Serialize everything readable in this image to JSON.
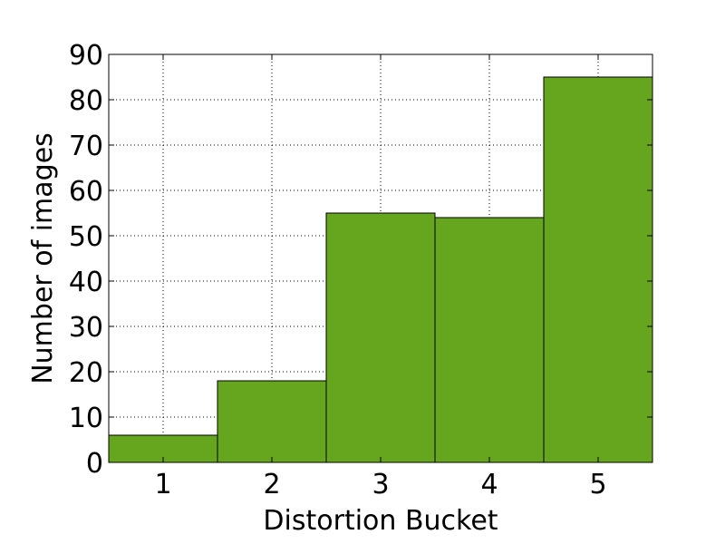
{
  "chart_data": {
    "type": "bar",
    "categories": [
      "1",
      "2",
      "3",
      "4",
      "5"
    ],
    "values": [
      6,
      18,
      55,
      54,
      85
    ],
    "title": "",
    "xlabel": "Distortion Bucket",
    "ylabel": "Number of images",
    "ylim": [
      0,
      90
    ],
    "yticks": [
      "0",
      "10",
      "20",
      "30",
      "40",
      "50",
      "60",
      "70",
      "80",
      "90"
    ],
    "grid": true,
    "bar_color": "#66a61e",
    "edge_color": "#000000"
  }
}
